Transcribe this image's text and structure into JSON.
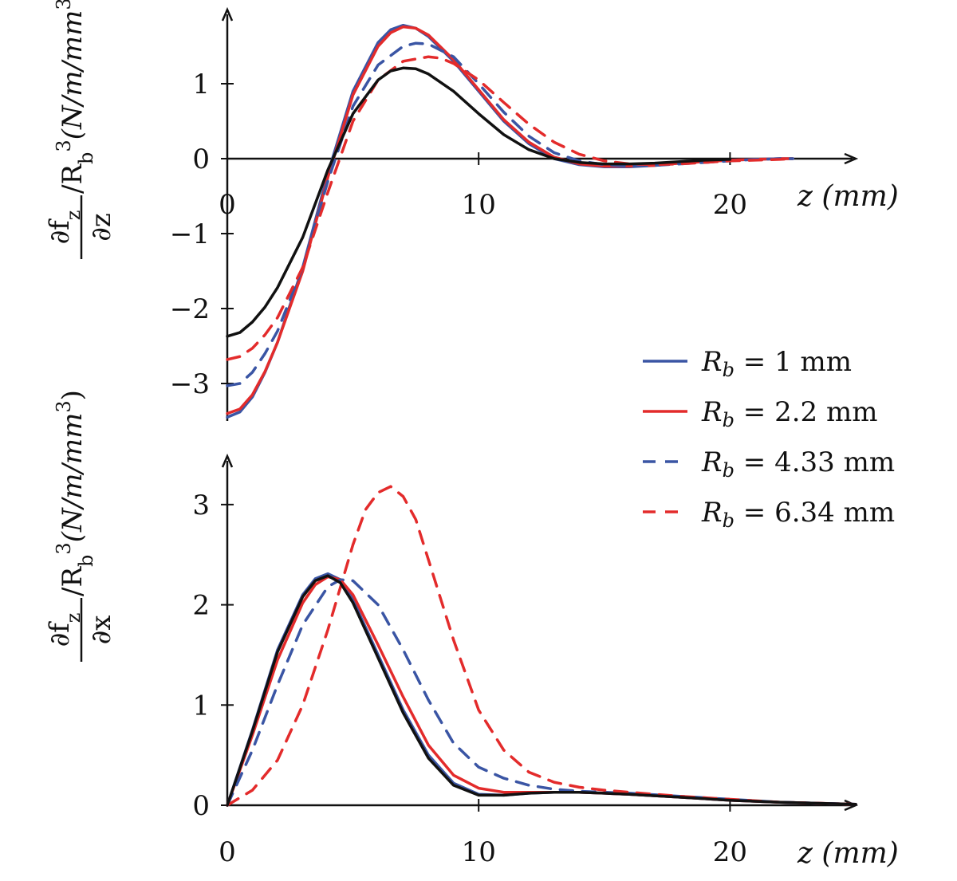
{
  "chart_data": [
    {
      "type": "line",
      "panel": "top",
      "ylabel_num": "∂f",
      "ylabel_num_sub": "z",
      "ylabel_den": "∂z",
      "ylabel_tail": "/R",
      "ylabel_tail_sub": "b",
      "ylabel_tail_sup": "3",
      "ylabel_units": "(N/m/mm",
      "ylabel_units_sup": "3",
      "ylabel_units_close": ")",
      "xlabel": "z (mm)",
      "xlim": [
        0,
        25
      ],
      "ylim": [
        -3.5,
        2
      ],
      "xticks": [
        0,
        10,
        20
      ],
      "yticks": [
        -3,
        -2,
        -1,
        0,
        1
      ],
      "series": [
        {
          "name": "R_b = 1 mm",
          "color": "#3a55a4",
          "dash": "solid",
          "x": [
            0,
            0.5,
            1,
            1.5,
            2,
            3,
            4,
            5,
            6,
            6.5,
            7,
            7.5,
            8,
            9,
            10,
            11,
            12,
            13,
            14,
            15,
            16,
            17,
            18,
            19,
            20,
            21,
            22,
            22.5
          ],
          "y": [
            -3.45,
            -3.38,
            -3.18,
            -2.85,
            -2.45,
            -1.45,
            -0.2,
            0.9,
            1.55,
            1.72,
            1.78,
            1.74,
            1.63,
            1.3,
            0.9,
            0.5,
            0.2,
            0.0,
            -0.08,
            -0.11,
            -0.11,
            -0.09,
            -0.06,
            -0.04,
            -0.02,
            -0.01,
            0,
            0
          ]
        },
        {
          "name": "R_b = 2.2 mm",
          "color": "#e32b2b",
          "dash": "solid",
          "x": [
            0,
            0.5,
            1,
            1.5,
            2,
            3,
            4,
            5,
            6,
            6.5,
            7,
            7.5,
            8,
            9,
            10,
            11,
            12,
            13,
            14,
            15,
            16,
            17,
            18,
            19,
            20,
            21,
            22,
            22.5
          ],
          "y": [
            -3.4,
            -3.34,
            -3.15,
            -2.84,
            -2.45,
            -1.5,
            -0.25,
            0.85,
            1.5,
            1.68,
            1.76,
            1.74,
            1.65,
            1.32,
            0.92,
            0.52,
            0.22,
            0.02,
            -0.07,
            -0.1,
            -0.1,
            -0.09,
            -0.06,
            -0.04,
            -0.02,
            -0.01,
            0,
            0
          ]
        },
        {
          "name": "R_b = 4.33 mm",
          "color": "#3a55a4",
          "dash": "dashed",
          "x": [
            0,
            0.5,
            1,
            1.5,
            2,
            3,
            4,
            5,
            6,
            7,
            7.5,
            8,
            9,
            10,
            11,
            12,
            13,
            14,
            15,
            16,
            17,
            18,
            19,
            20,
            21,
            22,
            22.5
          ],
          "y": [
            -3.03,
            -3.0,
            -2.85,
            -2.6,
            -2.3,
            -1.45,
            -0.3,
            0.7,
            1.25,
            1.5,
            1.54,
            1.53,
            1.36,
            1.0,
            0.62,
            0.3,
            0.08,
            -0.03,
            -0.08,
            -0.1,
            -0.09,
            -0.07,
            -0.05,
            -0.03,
            -0.01,
            0,
            0
          ]
        },
        {
          "name": "R_b = 6.34 mm",
          "color": "#e32b2b",
          "dash": "dashed",
          "x": [
            0,
            0.5,
            1,
            1.5,
            2,
            3,
            4,
            5,
            6,
            7,
            8,
            8.5,
            9,
            10,
            11,
            12,
            13,
            14,
            15,
            16,
            17,
            18,
            19,
            20,
            21,
            22,
            22.5
          ],
          "y": [
            -2.68,
            -2.64,
            -2.53,
            -2.35,
            -2.12,
            -1.45,
            -0.45,
            0.5,
            1.05,
            1.3,
            1.36,
            1.34,
            1.27,
            1.05,
            0.75,
            0.46,
            0.22,
            0.06,
            -0.03,
            -0.07,
            -0.08,
            -0.07,
            -0.05,
            -0.03,
            -0.02,
            -0.01,
            0
          ]
        },
        {
          "name": "",
          "color": "#111111",
          "dash": "solid",
          "x": [
            0,
            0.5,
            1,
            1.5,
            2,
            3,
            4,
            5,
            6,
            6.5,
            7,
            7.5,
            8,
            9,
            10,
            11,
            12,
            13,
            14,
            15,
            16,
            17,
            18,
            19,
            20
          ],
          "y": [
            -2.37,
            -2.32,
            -2.18,
            -1.98,
            -1.72,
            -1.05,
            -0.15,
            0.6,
            1.05,
            1.17,
            1.21,
            1.2,
            1.13,
            0.9,
            0.6,
            0.32,
            0.12,
            0.0,
            -0.05,
            -0.07,
            -0.07,
            -0.06,
            -0.04,
            -0.02,
            -0.01
          ]
        }
      ]
    },
    {
      "type": "line",
      "panel": "bottom",
      "ylabel_num": "∂f",
      "ylabel_num_sub": "z",
      "ylabel_den": "∂x",
      "ylabel_tail": "/R",
      "ylabel_tail_sub": "b",
      "ylabel_tail_sup": "3",
      "ylabel_units": "(N/m/mm",
      "ylabel_units_sup": "3",
      "ylabel_units_close": ")",
      "xlabel": "z (mm)",
      "xlim": [
        0,
        25
      ],
      "ylim": [
        0,
        3.5
      ],
      "xticks": [
        0,
        10,
        20
      ],
      "yticks": [
        0,
        1,
        2,
        3
      ],
      "series": [
        {
          "name": "R_b = 1 mm",
          "color": "#3a55a4",
          "dash": "solid",
          "x": [
            0,
            1,
            2,
            3,
            3.5,
            4,
            4.5,
            5,
            6,
            7,
            8,
            9,
            10,
            11,
            12,
            13,
            14,
            15,
            16,
            18,
            20,
            22,
            25
          ],
          "y": [
            0,
            0.75,
            1.55,
            2.1,
            2.26,
            2.31,
            2.25,
            2.05,
            1.5,
            0.95,
            0.5,
            0.22,
            0.11,
            0.1,
            0.12,
            0.13,
            0.13,
            0.12,
            0.11,
            0.08,
            0.05,
            0.03,
            0.01
          ]
        },
        {
          "name": "R_b = 2.2 mm",
          "color": "#e32b2b",
          "dash": "solid",
          "x": [
            0,
            1,
            2,
            3,
            3.5,
            4,
            4.5,
            5,
            6,
            7,
            8,
            9,
            10,
            11,
            12,
            13,
            14,
            15,
            16,
            18,
            20,
            22,
            25
          ],
          "y": [
            0,
            0.7,
            1.45,
            2.02,
            2.2,
            2.28,
            2.25,
            2.1,
            1.6,
            1.08,
            0.6,
            0.3,
            0.17,
            0.13,
            0.13,
            0.13,
            0.13,
            0.12,
            0.11,
            0.08,
            0.05,
            0.03,
            0.01
          ]
        },
        {
          "name": "R_b = 4.33 mm",
          "color": "#3a55a4",
          "dash": "dashed",
          "x": [
            0,
            1,
            2,
            3,
            4,
            4.5,
            5,
            6,
            7,
            8,
            9,
            10,
            11,
            12,
            13,
            14,
            15,
            16,
            18,
            20,
            22,
            25
          ],
          "y": [
            0,
            0.55,
            1.2,
            1.8,
            2.18,
            2.25,
            2.24,
            2.0,
            1.55,
            1.05,
            0.62,
            0.38,
            0.27,
            0.2,
            0.16,
            0.14,
            0.13,
            0.12,
            0.09,
            0.06,
            0.03,
            0.01
          ]
        },
        {
          "name": "R_b = 6.34 mm",
          "color": "#e32b2b",
          "dash": "dashed",
          "x": [
            0,
            1,
            2,
            3,
            4,
            5,
            5.5,
            6,
            6.5,
            7,
            7.5,
            8,
            9,
            10,
            11,
            12,
            13,
            14,
            15,
            16,
            18,
            20,
            22,
            25
          ],
          "y": [
            0,
            0.15,
            0.45,
            1.0,
            1.75,
            2.6,
            2.95,
            3.12,
            3.18,
            3.08,
            2.85,
            2.45,
            1.65,
            0.95,
            0.55,
            0.33,
            0.23,
            0.18,
            0.15,
            0.13,
            0.09,
            0.06,
            0.03,
            0.01
          ]
        },
        {
          "name": "",
          "color": "#111111",
          "dash": "solid",
          "x": [
            0,
            1,
            2,
            3,
            3.5,
            4,
            4.5,
            5,
            6,
            7,
            8,
            9,
            10,
            11,
            12,
            13,
            14,
            15,
            16,
            18,
            20,
            22,
            25
          ],
          "y": [
            0,
            0.74,
            1.53,
            2.08,
            2.24,
            2.29,
            2.22,
            2.02,
            1.47,
            0.92,
            0.47,
            0.2,
            0.1,
            0.1,
            0.12,
            0.13,
            0.13,
            0.12,
            0.11,
            0.08,
            0.05,
            0.03,
            0.01
          ]
        }
      ]
    }
  ],
  "legend": {
    "placement": "right-middle",
    "items": [
      {
        "prefix": "R",
        "sub": "b",
        "text": " = 1 mm",
        "color": "#3a55a4",
        "dash": "solid"
      },
      {
        "prefix": "R",
        "sub": "b",
        "text": " = 2.2 mm",
        "color": "#e32b2b",
        "dash": "solid"
      },
      {
        "prefix": "R",
        "sub": "b",
        "text": " = 4.33 mm",
        "color": "#3a55a4",
        "dash": "dashed"
      },
      {
        "prefix": "R",
        "sub": "b",
        "text": " = 6.34 mm",
        "color": "#e32b2b",
        "dash": "dashed"
      }
    ]
  }
}
